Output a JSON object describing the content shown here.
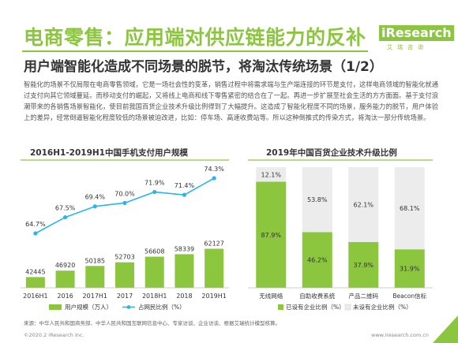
{
  "header": {
    "title": "电商零售：应用端对供应链能力的反补",
    "subtitle": "用户端智能化造成不同场景的脱节，将淘汰传统场景（1/2）"
  },
  "logo": {
    "brand": "iResearch",
    "tagline": "艾瑞咨询"
  },
  "body_text": "智能化的场景不仅局限在电商零售领域，它是一场社会性的变革，销售过程中将需求端与生产端连接的环节是支付，这样电商领域的智能化就通过支付向其它领域蔓延。而移动支付的崛起，又将线上电商和线下零售紧密的结合在了一起。再进一步扩展至社会生活的方方面面。基于支付浪潮带来的各销售场景智能化，使目前我国百货企业技术升级比例得到了大幅提升。这造成了智能化程度不同的场景，服务能力的脱节，用户体验上的差异，经常倒逼智能化程度较低的场景被迫改进，比如：停车场、高速收费站等。所以这种倒推式的传染方式，将淘汰一部分传统场景。",
  "chart_data": [
    {
      "type": "bar",
      "title": "2016H1-2019H1中国手机支付用户规模",
      "categories": [
        "2016H1",
        "2016",
        "2017H1",
        "2017",
        "2018H1",
        "2018",
        "2019H1"
      ],
      "series": [
        {
          "name": "用户规模（万人）",
          "type": "bar",
          "values": [
            42445,
            46920,
            50185,
            52703,
            56608,
            58339,
            62127
          ]
        },
        {
          "name": "占网民比例（%）",
          "type": "line",
          "values": [
            64.7,
            67.5,
            69.4,
            70.0,
            71.9,
            71.4,
            74.3
          ]
        }
      ],
      "value_labels": [
        "42445",
        "46920",
        "50185",
        "52703",
        "56608",
        "58339",
        "62127"
      ],
      "line_labels": [
        "64.7%",
        "67.5%",
        "69.4%",
        "70.0%",
        "71.9%",
        "71.4%",
        "74.3%"
      ],
      "legend_position": "bottom",
      "colors": {
        "bar": "#8cc63f",
        "line": "#29b6e8"
      }
    },
    {
      "type": "bar",
      "stacked": true,
      "title": "2019年中国百货企业技术升级比例",
      "categories": [
        "无线网络",
        "自助收费系统",
        "产品二维码",
        "Beacon信标"
      ],
      "series": [
        {
          "name": "已设有企业比例（%）",
          "values": [
            87.9,
            46.2,
            37.9,
            31.9
          ]
        },
        {
          "name": "未设有企业比例（%）",
          "values": [
            12.1,
            53.8,
            62.1,
            68.1
          ]
        }
      ],
      "bottom_labels": [
        "87.9%",
        "46.2%",
        "37.9%",
        "31.9%"
      ],
      "top_labels": [
        "12.1%",
        "53.8%",
        "62.1%",
        "68.1%"
      ],
      "ylim": [
        0,
        100
      ],
      "legend_position": "bottom",
      "colors": {
        "set": "#8cc63f",
        "unset": "#ececec"
      }
    }
  ],
  "footer": {
    "source": "来源：中华人民共和国商务部、中华人民共和国互联网信息中心、专家访谈、企业访谈、根据艾瑞统计模型核算。",
    "copyright": "©2020.2 iResearch Inc.",
    "website": "www.iresearch.com.cn",
    "page": "9"
  }
}
